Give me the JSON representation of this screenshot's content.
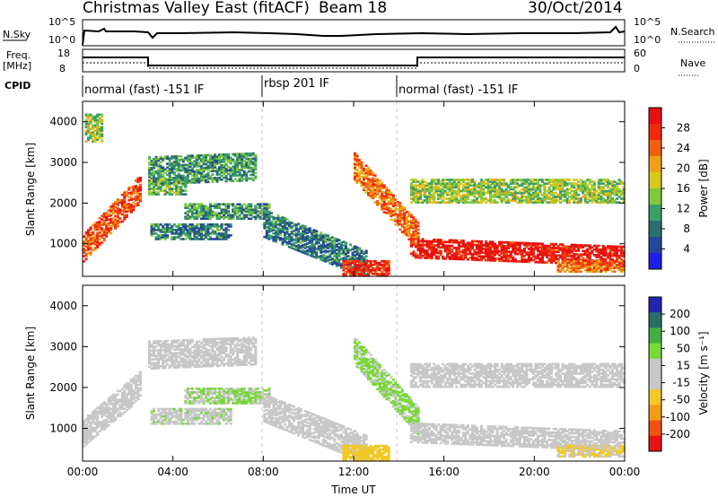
{
  "header": {
    "title": "Christmas Valley East (fitACF)",
    "beam": "Beam 18",
    "date": "30/Oct/2014"
  },
  "top_panels": {
    "nsky_label": "N.Sky",
    "nsky_ticks": [
      "10^5",
      "10^0"
    ],
    "nsearch_label": "N.Search",
    "nsearch_ticks": [
      "10^5",
      "10^0"
    ],
    "freq_label": "Freq.",
    "freq_unit": "[MHz]",
    "freq_ticks": [
      "18",
      "8"
    ],
    "nave_label": "Nave",
    "nave_ticks": [
      "60",
      "0"
    ],
    "cpid_label": "CPID",
    "cpid_segments": [
      {
        "label": "normal (fast) -151 IF",
        "start_h": 0,
        "end_h": 8.0
      },
      {
        "label": "rbsp 201 IF",
        "start_h": 8.0,
        "end_h": 14.0
      },
      {
        "label": "normal (fast) -151 IF",
        "start_h": 14.0,
        "end_h": 24
      }
    ]
  },
  "axes": {
    "ylabel": "Slant Range [km]",
    "xlabel": "Time UT",
    "y_ticks": [
      "1000",
      "2000",
      "3000",
      "4000"
    ],
    "x_ticks": [
      "00:00",
      "04:00",
      "08:00",
      "12:00",
      "16:00",
      "20:00",
      "00:00"
    ]
  },
  "power_colorbar": {
    "label": "Power [dB]",
    "ticks": [
      "4",
      "8",
      "12",
      "16",
      "20",
      "24",
      "28"
    ],
    "colors": [
      "#1e20ea",
      "#24479a",
      "#2e6e6e",
      "#3aa06a",
      "#80c83c",
      "#d8c81e",
      "#f0a018",
      "#f06010",
      "#f02a10",
      "#e81010"
    ]
  },
  "velocity_colorbar": {
    "label": "Velocity [m s⁻¹]",
    "ticks": [
      "200",
      "100",
      "50",
      "15",
      "-15",
      "-50",
      "-100",
      "-200"
    ],
    "colors": [
      "#2424b0",
      "#287068",
      "#44b044",
      "#78d838",
      "#c8c8c8",
      "#c8c8c8",
      "#f0c828",
      "#f09c18",
      "#f05010",
      "#e81212"
    ]
  },
  "chart_data": [
    {
      "type": "heatmap",
      "name": "power",
      "x_unit": "hours UT",
      "y_unit": "km",
      "xlim": [
        0,
        24
      ],
      "ylim": [
        200,
        4500
      ],
      "colorbar": "Power [dB]",
      "value_range": [
        0,
        30
      ],
      "regions": [
        {
          "t0": 0.0,
          "t1": 2.6,
          "r_start": 900,
          "r_end": 2400,
          "slope": 1500,
          "value": 24
        },
        {
          "t0": 0.1,
          "t1": 0.8,
          "r_start": 3500,
          "r_end": 4200,
          "slope": 0,
          "value": 14
        },
        {
          "t0": 2.9,
          "t1": 7.6,
          "r_start": 2800,
          "r_end": 3500,
          "slope": 100,
          "value": 10
        },
        {
          "t0": 2.9,
          "t1": 4.5,
          "r_start": 2200,
          "r_end": 2600,
          "slope": 0,
          "value": 12
        },
        {
          "t0": 4.5,
          "t1": 8.2,
          "r_start": 1600,
          "r_end": 2000,
          "slope": 0,
          "value": 10
        },
        {
          "t0": 3.0,
          "t1": 6.5,
          "r_start": 1100,
          "r_end": 1500,
          "slope": 0,
          "value": 8
        },
        {
          "t0": 8.0,
          "t1": 12.5,
          "r_start": 1500,
          "r_end": 200,
          "slope": -1000,
          "value": 8
        },
        {
          "t0": 12.0,
          "t1": 14.8,
          "r_start": 2900,
          "r_end": 1000,
          "slope": -1700,
          "value": 22
        },
        {
          "t0": 14.5,
          "t1": 24.0,
          "r_start": 900,
          "r_end": 1400,
          "slope": -200,
          "value": 28
        },
        {
          "t0": 14.5,
          "t1": 24.0,
          "r_start": 2000,
          "r_end": 2600,
          "slope": 0,
          "value": 14
        },
        {
          "t0": 11.5,
          "t1": 13.5,
          "r_start": 200,
          "r_end": 600,
          "slope": 0,
          "value": 26
        },
        {
          "t0": 21.0,
          "t1": 24.0,
          "r_start": 300,
          "r_end": 600,
          "slope": 0,
          "value": 22
        }
      ]
    },
    {
      "type": "heatmap",
      "name": "velocity",
      "x_unit": "hours UT",
      "y_unit": "km",
      "xlim": [
        0,
        24
      ],
      "ylim": [
        200,
        4500
      ],
      "colorbar": "Velocity [m s⁻¹]",
      "value_range": [
        -200,
        200
      ],
      "regions": [
        {
          "t0": 0.0,
          "t1": 2.6,
          "r_start": 900,
          "r_end": 2300,
          "slope": 1200,
          "value": 0
        },
        {
          "t0": 2.9,
          "t1": 7.6,
          "r_start": 2800,
          "r_end": 3500,
          "slope": 100,
          "value": 0
        },
        {
          "t0": 4.5,
          "t1": 8.2,
          "r_start": 1600,
          "r_end": 2000,
          "slope": 0,
          "value": 40
        },
        {
          "t0": 3.0,
          "t1": 6.5,
          "r_start": 1100,
          "r_end": 1500,
          "slope": 0,
          "value": 30
        },
        {
          "t0": 8.0,
          "t1": 12.5,
          "r_start": 1500,
          "r_end": 200,
          "slope": -1000,
          "value": 0
        },
        {
          "t0": 12.0,
          "t1": 14.8,
          "r_start": 2900,
          "r_end": 1000,
          "slope": -1700,
          "value": 45
        },
        {
          "t0": 14.5,
          "t1": 24.0,
          "r_start": 900,
          "r_end": 1400,
          "slope": -200,
          "value": 0
        },
        {
          "t0": 14.5,
          "t1": 24.0,
          "r_start": 2000,
          "r_end": 2600,
          "slope": 0,
          "value": 0
        },
        {
          "t0": 11.5,
          "t1": 13.5,
          "r_start": 200,
          "r_end": 600,
          "slope": 0,
          "value": -60
        },
        {
          "t0": 21.0,
          "t1": 24.0,
          "r_start": 300,
          "r_end": 600,
          "slope": 0,
          "value": -40
        }
      ]
    }
  ]
}
